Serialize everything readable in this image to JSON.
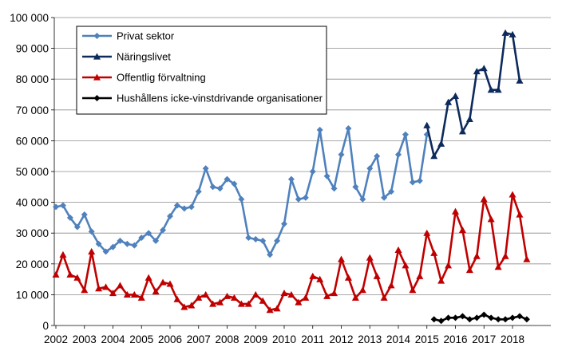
{
  "chart_data": {
    "type": "line",
    "title": "",
    "xlabel": "",
    "ylabel": "",
    "ylim": [
      0,
      100000
    ],
    "y_ticks": [
      0,
      10000,
      20000,
      30000,
      40000,
      50000,
      60000,
      70000,
      80000,
      90000,
      100000
    ],
    "y_tick_labels": [
      "0",
      "10 000",
      "20 000",
      "30 000",
      "40 000",
      "50 000",
      "60 000",
      "70 000",
      "80 000",
      "90 000",
      "100 000"
    ],
    "x_tick_labels": [
      "2002",
      "2003",
      "2004",
      "2005",
      "2006",
      "2007",
      "2008",
      "2009",
      "2010",
      "2011",
      "2012",
      "2013",
      "2014",
      "2015",
      "2016",
      "2017",
      "2018"
    ],
    "grid": "horizontal",
    "legend_position": "top-left",
    "x_unit": "quarter",
    "series": [
      {
        "name": "Privat sektor",
        "color": "#4f81bd",
        "marker": "diamond",
        "start": "2002Q1",
        "values": [
          38500,
          39000,
          35000,
          32000,
          36000,
          30500,
          26500,
          24000,
          25500,
          27500,
          26500,
          26000,
          28500,
          30000,
          27500,
          31000,
          35500,
          39000,
          38000,
          38500,
          43500,
          51000,
          45000,
          44500,
          47500,
          46000,
          41000,
          28500,
          28000,
          27500,
          23000,
          27500,
          33000,
          47500,
          41000,
          41500,
          50000,
          63500,
          48500,
          44500,
          55500,
          64000,
          45000,
          41000,
          51000,
          55000,
          41500,
          43500,
          55500,
          62000,
          46500,
          47000,
          62000
        ]
      },
      {
        "name": "Näringslivet",
        "color": "#0d2a5c",
        "marker": "triangle",
        "start": "2015Q1",
        "values": [
          65000,
          55000,
          59000,
          72500,
          74500,
          63000,
          67000,
          82500,
          83500,
          76500,
          76500,
          95000,
          94500,
          79500
        ]
      },
      {
        "name": "Offentlig förvaltning",
        "color": "#c00000",
        "marker": "triangle",
        "start": "2002Q1",
        "values": [
          16500,
          23000,
          16500,
          15500,
          11500,
          24000,
          12000,
          12500,
          10500,
          13000,
          10000,
          10000,
          9000,
          15500,
          11000,
          14000,
          13500,
          8500,
          6000,
          6500,
          9000,
          10000,
          7000,
          7500,
          9500,
          9000,
          7000,
          7000,
          10000,
          8000,
          5000,
          5500,
          10500,
          10000,
          7500,
          9000,
          16000,
          15000,
          9500,
          10500,
          21500,
          15500,
          9000,
          11500,
          22000,
          16000,
          9000,
          13000,
          24500,
          19500,
          11500,
          16000,
          30000,
          23500,
          14500,
          19500,
          37000,
          31000,
          18000,
          22500,
          41000,
          34500,
          19000,
          22500,
          42500,
          36000,
          21500
        ]
      },
      {
        "name": "Hushållens icke-vinstdrivande organisationer",
        "color": "#000000",
        "marker": "diamond",
        "start": "2015Q2",
        "values": [
          2000,
          1500,
          2500,
          2500,
          3000,
          2000,
          2500,
          3500,
          2500,
          2000,
          2000,
          2500,
          3000,
          2000
        ]
      }
    ]
  }
}
